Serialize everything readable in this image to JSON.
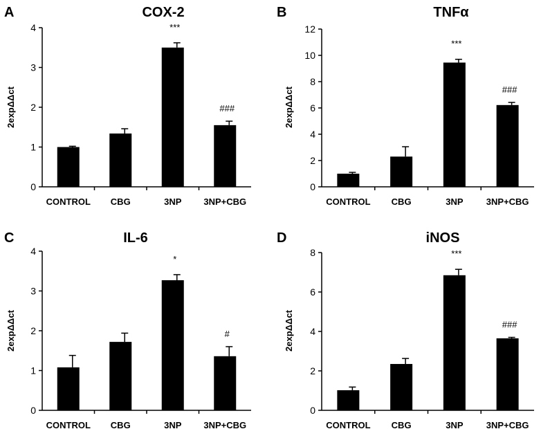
{
  "chart_data": [
    {
      "type": "bar",
      "panel": "A",
      "title": "COX-2",
      "xlabel": "",
      "ylabel": "2expΔΔct",
      "categories": [
        "CONTROL",
        "CBG",
        "3NP",
        "3NP+CBG"
      ],
      "values": [
        1.0,
        1.34,
        3.5,
        1.55
      ],
      "errors": [
        0.02,
        0.12,
        0.12,
        0.1
      ],
      "significance": [
        "",
        "",
        "***",
        "###"
      ],
      "ylim": [
        0,
        4
      ],
      "yticks": [
        "0",
        "1",
        "2",
        "3",
        "4"
      ],
      "bar_color": "#000000"
    },
    {
      "type": "bar",
      "panel": "B",
      "title": "TNFα",
      "xlabel": "",
      "ylabel": "2expΔΔct",
      "categories": [
        "CONTROL",
        "CBG",
        "3NP",
        "3NP+CBG"
      ],
      "values": [
        1.0,
        2.3,
        9.45,
        6.22
      ],
      "errors": [
        0.1,
        0.75,
        0.25,
        0.2
      ],
      "significance": [
        "",
        "",
        "***",
        "###"
      ],
      "ylim": [
        0,
        12
      ],
      "yticks": [
        "0",
        "2",
        "4",
        "6",
        "8",
        "10",
        "12"
      ],
      "bar_color": "#000000"
    },
    {
      "type": "bar",
      "panel": "C",
      "title": "IL-6",
      "xlabel": "",
      "ylabel": "2expΔΔct",
      "categories": [
        "CONTROL",
        "CBG",
        "3NP",
        "3NP+CBG"
      ],
      "values": [
        1.08,
        1.72,
        3.27,
        1.36
      ],
      "errors": [
        0.3,
        0.22,
        0.14,
        0.24
      ],
      "significance": [
        "",
        "",
        "*",
        "#"
      ],
      "ylim": [
        0,
        4
      ],
      "yticks": [
        "0",
        "1",
        "2",
        "3",
        "4"
      ],
      "bar_color": "#000000"
    },
    {
      "type": "bar",
      "panel": "D",
      "title": "iNOS",
      "xlabel": "",
      "ylabel": "2expΔΔct",
      "categories": [
        "CONTROL",
        "CBG",
        "3NP",
        "3NP+CBG"
      ],
      "values": [
        1.02,
        2.35,
        6.85,
        3.65
      ],
      "errors": [
        0.16,
        0.28,
        0.3,
        0.05
      ],
      "significance": [
        "",
        "",
        "***",
        "###"
      ],
      "ylim": [
        0,
        8
      ],
      "yticks": [
        "0",
        "2",
        "4",
        "6",
        "8"
      ],
      "bar_color": "#000000"
    }
  ]
}
